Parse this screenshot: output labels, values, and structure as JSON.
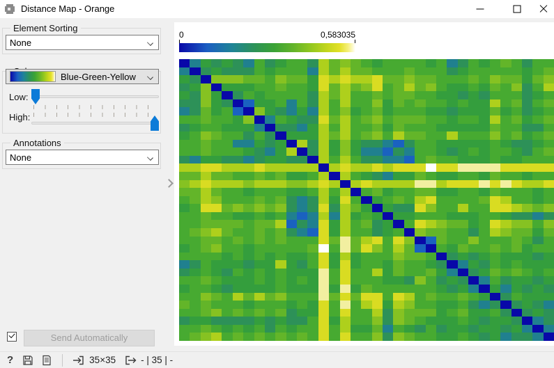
{
  "window": {
    "title": "Distance Map - Orange",
    "buttons": {
      "minimize": "minimize",
      "maximize": "maximize",
      "close": "close"
    }
  },
  "sidebar": {
    "element_sorting": {
      "label": "Element Sorting",
      "value": "None"
    },
    "colors": {
      "label": "Colors",
      "palette_name": "Blue-Green-Yellow",
      "low_label": "Low:",
      "high_label": "High:",
      "low_value": 0,
      "high_value": 1
    },
    "annotations": {
      "label": "Annotations",
      "value": "None"
    },
    "auto_send_checked": true,
    "send_button_label": "Send Automatically"
  },
  "statusbar": {
    "help_glyph": "?",
    "input_dims": "35×35",
    "output_summary": "- | 35 | -"
  },
  "colorbar": {
    "min_label": "0",
    "max_label": "0,583035",
    "gradient_stops": [
      [
        "#0909a8",
        0
      ],
      [
        "#1b5ec2",
        16
      ],
      [
        "#1f8496",
        30
      ],
      [
        "#2d9357",
        43
      ],
      [
        "#3ba336",
        54
      ],
      [
        "#64b42a",
        65
      ],
      [
        "#94c81f",
        75
      ],
      [
        "#c4d61d",
        84
      ],
      [
        "#e2e028",
        91
      ],
      [
        "#f6f07e",
        96
      ],
      [
        "#ffffff",
        100
      ]
    ]
  },
  "chart_data": {
    "type": "heatmap",
    "title": "Distance Map",
    "matrix_size": "35x35",
    "value_range": [
      0,
      0.583035
    ],
    "palette": {
      "0": "#0808a8",
      "1": "#1a62c0",
      "2": "#20808f",
      "3": "#2d9158",
      "4": "#349e3d",
      "5": "#47aa31",
      "6": "#63b529",
      "7": "#86c222",
      "8": "#aed01c",
      "9": "#d9dc22",
      "a": "#f2efa0",
      "b": "#ffffff"
    },
    "rows": [
      "02434325345538676545555452354565355",
      "20343335455528686655565553455555456",
      "43077766576649898896676655565766467",
      "34704445565549686795686754454657358",
      "43740354555538685565665544343555345",
      "33743014452538585574656554544856356",
      "23645107432428574564555443444645345",
      "55655470254339685675666554554856456",
      "34554442033248585564655544444655335",
      "45765535304448685675866558555756456",
      "55655224340838474332135544444543345",
      "55655543248038474221325543454554356",
      "32443323443308585332215655444544555",
      "8899888988888089889 8999b99aaaa99999",
      "66866556564458085432446544554655455",
      "7898887888778980898888aa8999a9a9889",
      "66865545554458580564556644554655545",
      "56875556563238495045658955556985545",
      "45996767673239386404339755855998767",
      "55655445452128284540445554445543323",
      "55666656681329485634059876645987757",
      "56786556563219485534507665535876646",
      "556656565655596a68959701655755 56535",
      "4567554555556b5a69758610546556 56455",
      "55554545454459484555766503434544434",
      "23544434484359494554655430243545444",
      "3454354545444a5955846556420346 56545",
      "5565444545454a5955544375343025 34434",
      "4554344445444a4a46555555434204 24343",
      "5576586867555a6969959856556540 35444",
      "656555455545495a58948755445323 03432",
      "55675656563449595583766645644530343",
      "34433334343359485573765444543443023",
      "55654545354559584462543534434434202",
      "56785656565659595573765544543423320"
    ]
  }
}
